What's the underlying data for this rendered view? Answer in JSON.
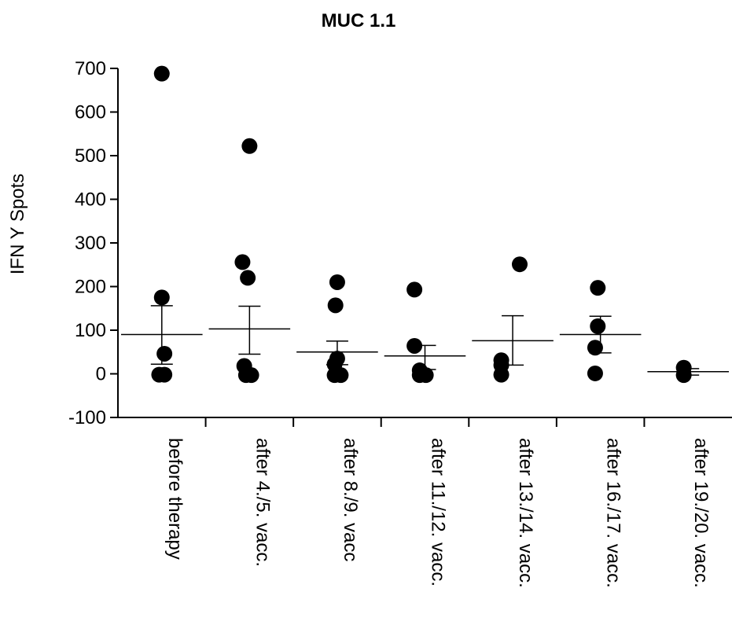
{
  "chart_data": {
    "type": "scatter",
    "title": "MUC 1.1",
    "xlabel": "",
    "ylabel": "IFN Y Spots",
    "ylim": [
      -100,
      700
    ],
    "yticks": [
      -100,
      0,
      100,
      200,
      300,
      400,
      500,
      600,
      700
    ],
    "grid": false,
    "categories": [
      "before therapy",
      "after 4./5. vacc.",
      "after 8./9. vacc",
      "after 11./12. vacc.",
      "after 13./14. vacc.",
      "after 16./17. vacc.",
      "after 19./20. vacc."
    ],
    "groups": [
      {
        "points": [
          {
            "offset": 0.0,
            "y": 688
          },
          {
            "offset": 0.0,
            "y": 175
          },
          {
            "offset": 0.03,
            "y": 46
          },
          {
            "offset": -0.03,
            "y": -2
          },
          {
            "offset": 0.03,
            "y": -2
          }
        ],
        "mean": 90,
        "err_low": 22,
        "err_high": 156
      },
      {
        "points": [
          {
            "offset": 0.0,
            "y": 522
          },
          {
            "offset": -0.08,
            "y": 256
          },
          {
            "offset": -0.02,
            "y": 220
          },
          {
            "offset": -0.06,
            "y": 18
          },
          {
            "offset": -0.04,
            "y": -3
          },
          {
            "offset": 0.02,
            "y": -3
          }
        ],
        "mean": 103,
        "err_low": 45,
        "err_high": 155
      },
      {
        "points": [
          {
            "offset": 0.0,
            "y": 210
          },
          {
            "offset": -0.02,
            "y": 157
          },
          {
            "offset": 0.0,
            "y": 35
          },
          {
            "offset": -0.03,
            "y": 22
          },
          {
            "offset": -0.03,
            "y": -3
          },
          {
            "offset": 0.04,
            "y": -3
          }
        ],
        "mean": 50,
        "err_low": 21,
        "err_high": 75
      },
      {
        "points": [
          {
            "offset": -0.12,
            "y": 193
          },
          {
            "offset": -0.12,
            "y": 64
          },
          {
            "offset": -0.06,
            "y": 8
          },
          {
            "offset": -0.06,
            "y": -3
          },
          {
            "offset": 0.01,
            "y": -3
          }
        ],
        "mean": 41,
        "err_low": 10,
        "err_high": 65
      },
      {
        "points": [
          {
            "offset": 0.08,
            "y": 251
          },
          {
            "offset": -0.13,
            "y": 31
          },
          {
            "offset": -0.13,
            "y": 20
          },
          {
            "offset": -0.13,
            "y": -2
          }
        ],
        "mean": 76,
        "err_low": 20,
        "err_high": 133
      },
      {
        "points": [
          {
            "offset": -0.03,
            "y": 197
          },
          {
            "offset": -0.03,
            "y": 109
          },
          {
            "offset": -0.06,
            "y": 60
          },
          {
            "offset": -0.06,
            "y": 1
          }
        ],
        "mean": 90,
        "err_low": 48,
        "err_high": 132
      },
      {
        "points": [
          {
            "offset": -0.05,
            "y": 14
          },
          {
            "offset": -0.05,
            "y": -3
          }
        ],
        "mean": 5,
        "err_low": -3,
        "err_high": 12
      }
    ]
  }
}
